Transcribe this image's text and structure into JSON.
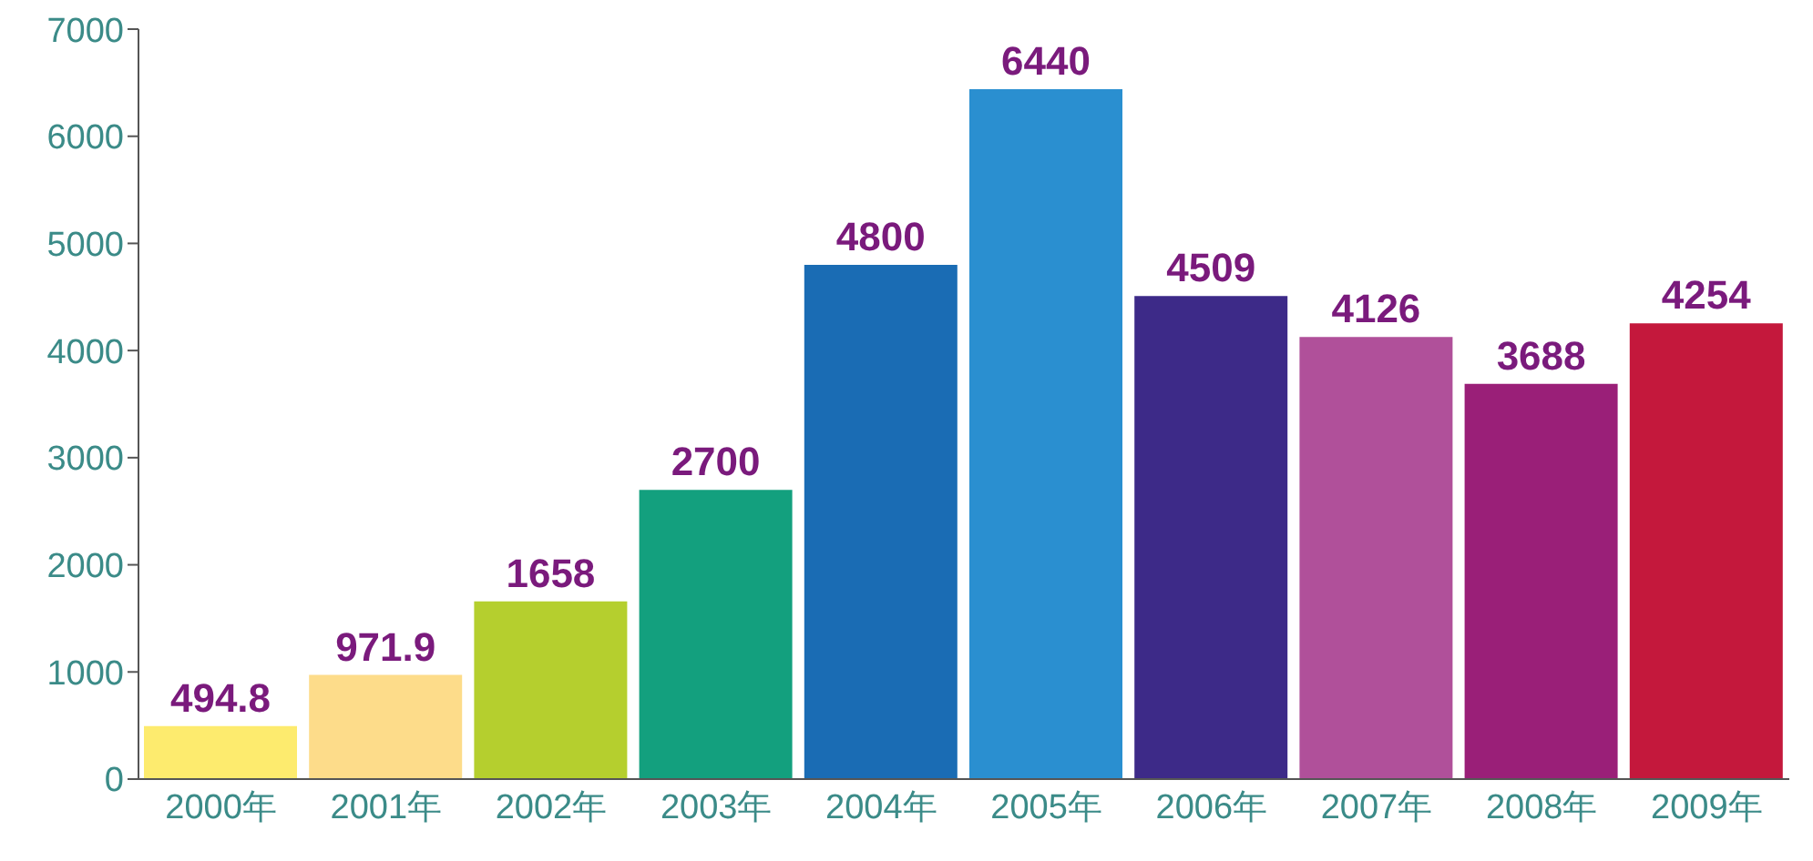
{
  "chart_data": {
    "type": "bar",
    "categories": [
      "2000年",
      "2001年",
      "2002年",
      "2003年",
      "2004年",
      "2005年",
      "2006年",
      "2007年",
      "2008年",
      "2009年"
    ],
    "values": [
      494.8,
      971.9,
      1658,
      2700,
      4800,
      6440,
      4509,
      4126,
      3688,
      4254
    ],
    "colors": [
      "#fdeb6e",
      "#fddc8a",
      "#b5cf2e",
      "#13a07e",
      "#1a6cb4",
      "#2a8fd0",
      "#3d2a88",
      "#b0509a",
      "#9a1f78",
      "#c4183c"
    ],
    "ylim": [
      0,
      7000
    ],
    "yticks": [
      0,
      1000,
      2000,
      3000,
      4000,
      5000,
      6000,
      7000
    ],
    "grid": false,
    "legend": false,
    "data_labels": true
  }
}
